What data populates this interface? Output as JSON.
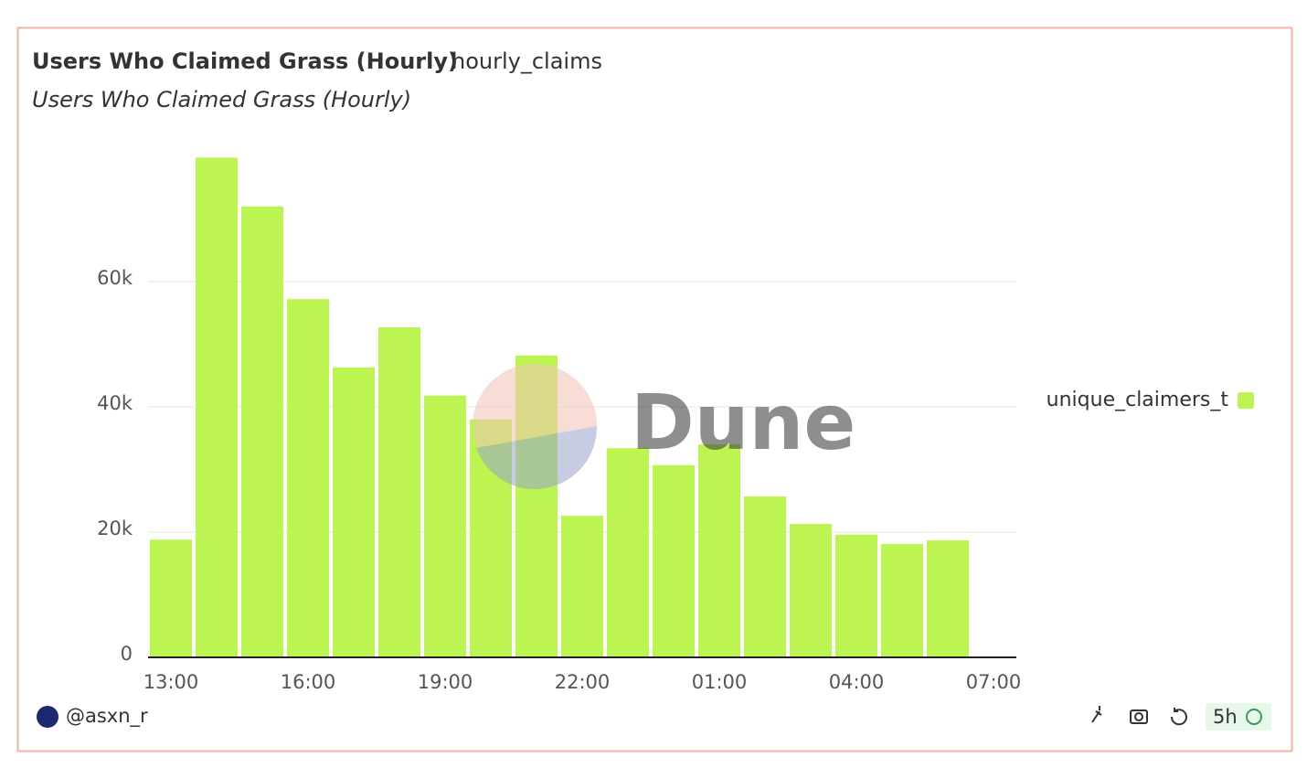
{
  "chart_data": {
    "type": "bar",
    "title": "Users Who Claimed Grass (Hourly)",
    "query_name": "hourly_claims",
    "subtitle": "Users Who Claimed Grass (Hourly)",
    "categories": [
      "13:00",
      null,
      null,
      "16:00",
      null,
      null,
      "19:00",
      null,
      null,
      "22:00",
      null,
      null,
      "01:00",
      null,
      null,
      "04:00",
      null,
      null,
      "07:00"
    ],
    "series": [
      {
        "name": "unique_claimers_t",
        "color": "#bcf451",
        "values": [
          18800,
          79800,
          72000,
          57200,
          46300,
          52700,
          41800,
          38000,
          48200,
          22600,
          33400,
          30700,
          34000,
          25700,
          21300,
          19600,
          18100,
          18700,
          null
        ]
      }
    ],
    "ylim": [
      0,
      80000
    ],
    "yticks": [
      0,
      {
        "value": 20000,
        "label": "20k"
      },
      {
        "value": 40000,
        "label": "40k"
      },
      {
        "value": 60000,
        "label": "60k"
      }
    ],
    "grid": true,
    "legend": "right",
    "watermark": "Dune",
    "author": "@asxn_r",
    "freshness": "5h"
  }
}
